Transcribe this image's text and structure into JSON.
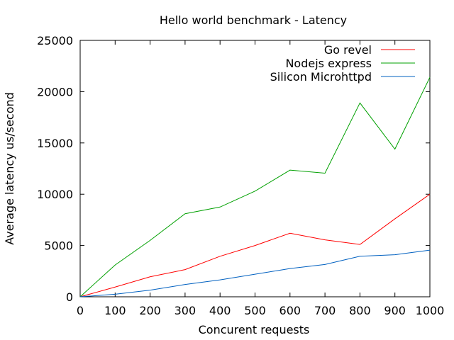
{
  "chart_data": {
    "type": "line",
    "title": "Hello world benchmark - Latency",
    "xlabel": "Concurent requests",
    "ylabel": "Average latency us/second",
    "xlim": [
      0,
      1000
    ],
    "ylim": [
      0,
      25000
    ],
    "x_ticks": [
      0,
      100,
      200,
      300,
      400,
      500,
      600,
      700,
      800,
      900,
      1000
    ],
    "y_ticks": [
      0,
      5000,
      10000,
      15000,
      20000,
      25000
    ],
    "grid": false,
    "legend_position": "top-right",
    "x": [
      0,
      100,
      200,
      300,
      400,
      500,
      600,
      700,
      800,
      900,
      1000
    ],
    "series": [
      {
        "name": "Go revel",
        "color": "#ff0000",
        "values": [
          0,
          950,
          1950,
          2650,
          3950,
          5000,
          6200,
          5550,
          5100,
          7600,
          10000
        ]
      },
      {
        "name": "Nodejs express",
        "color": "#00a000",
        "values": [
          0,
          3100,
          5500,
          8100,
          8750,
          10300,
          12350,
          12050,
          18900,
          14400,
          21400
        ]
      },
      {
        "name": "Silicon Microhttpd",
        "color": "#0060c0",
        "values": [
          0,
          250,
          650,
          1200,
          1650,
          2200,
          2750,
          3150,
          3950,
          4100,
          4550
        ]
      }
    ]
  }
}
